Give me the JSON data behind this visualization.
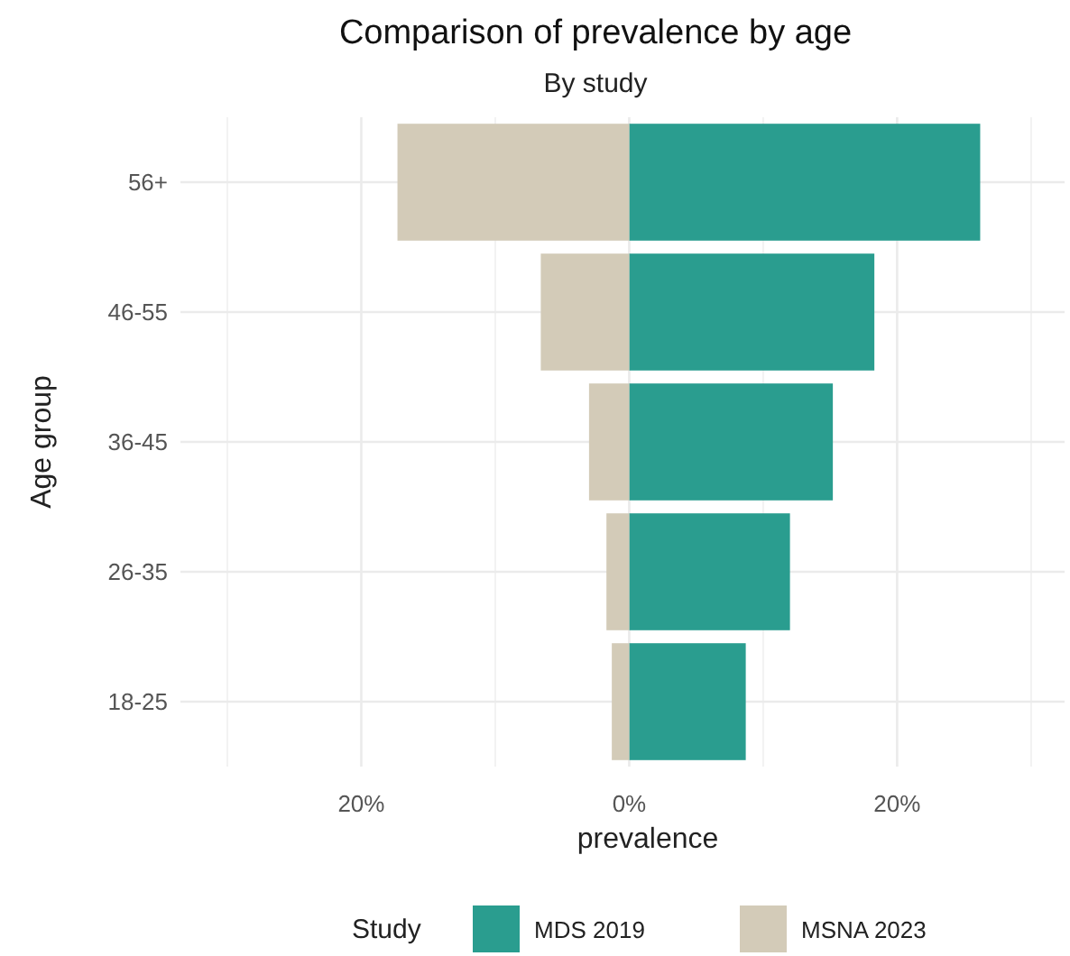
{
  "chart_data": {
    "type": "bar",
    "orientation": "horizontal",
    "stacked": true,
    "title": "Comparison of prevalence by age",
    "subtitle": "By study",
    "xlabel": "prevalence",
    "ylabel": "Age group",
    "legend_title": "Study",
    "legend": "bottom",
    "grid": true,
    "categories": [
      "56+",
      "46-55",
      "36-45",
      "26-35",
      "18-25"
    ],
    "series": [
      {
        "name": "MDS 2019",
        "color": "#2a9d8f",
        "values": [
          26.2,
          18.3,
          15.2,
          12.0,
          8.7
        ]
      },
      {
        "name": "MSNA 2023",
        "color": "#d3cbb8",
        "values": [
          -17.3,
          -6.6,
          -3.0,
          -1.7,
          -1.3
        ]
      }
    ],
    "xlim": [
      -33.5,
      32.5
    ],
    "xticks": [
      {
        "value": -30,
        "label": null
      },
      {
        "value": -20,
        "label": "20%"
      },
      {
        "value": -10,
        "label": null
      },
      {
        "value": 0,
        "label": "0%"
      },
      {
        "value": 10,
        "label": null
      },
      {
        "value": 20,
        "label": "20%"
      },
      {
        "value": 30,
        "label": null
      }
    ]
  }
}
